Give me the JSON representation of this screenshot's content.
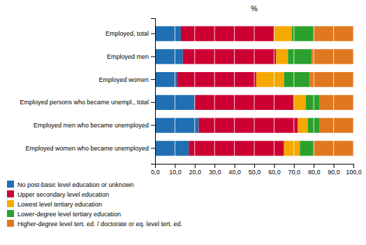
{
  "chart_data": {
    "type": "bar",
    "orientation": "horizontal",
    "stacked": true,
    "xlabel": "%",
    "categories": [
      "Employed, total",
      "Employed men",
      "Employed women",
      "Employed persons who became unempl., total",
      "Employed men who became unemployed",
      "Employed women who became unemployed"
    ],
    "series": [
      {
        "name": "No post-basic level education or unknown",
        "color": "#1f6fb2",
        "values": [
          13.0,
          14.0,
          11.0,
          20.0,
          22.0,
          17.0
        ]
      },
      {
        "name": "Upper secondary level education",
        "color": "#cc0033",
        "values": [
          47.0,
          47.0,
          40.0,
          50.0,
          50.0,
          48.0
        ]
      },
      {
        "name": "Lowest level tertiary education",
        "color": "#f5a800",
        "values": [
          9.0,
          6.0,
          14.0,
          6.0,
          5.0,
          8.0
        ]
      },
      {
        "name": "Lower-degree level tertiary education",
        "color": "#2ca02c",
        "values": [
          11.0,
          12.0,
          13.0,
          7.0,
          6.0,
          7.0
        ]
      },
      {
        "name": "Higher-degree level tert. ed. / doctorate or eq. level tert. ed.",
        "color": "#e07820",
        "values": [
          20.0,
          21.0,
          22.0,
          17.0,
          17.0,
          20.0
        ]
      }
    ],
    "xlim": [
      0,
      100
    ],
    "xticks": [
      {
        "value": 0.0,
        "label": "0,0"
      },
      {
        "value": 10.0,
        "label": "10,0"
      },
      {
        "value": 20.0,
        "label": "20,0"
      },
      {
        "value": 30.0,
        "label": "30,0"
      },
      {
        "value": 40.0,
        "label": "40,0"
      },
      {
        "value": 50.0,
        "label": "50,0"
      },
      {
        "value": 60.0,
        "label": "60,0"
      },
      {
        "value": 70.0,
        "label": "70,0"
      },
      {
        "value": 80.0,
        "label": "80,0"
      },
      {
        "value": 90.0,
        "label": "90,0"
      },
      {
        "value": 100.0,
        "label": "100,0"
      }
    ],
    "grid": true,
    "legend": "bottom"
  }
}
